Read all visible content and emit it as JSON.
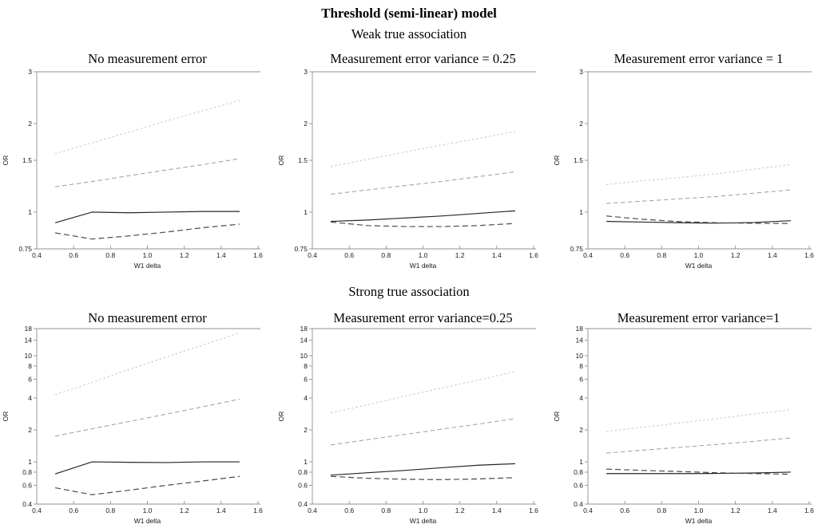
{
  "figure": {
    "title": "Threshold (semi-linear) model",
    "row_subtitles": [
      "Weak true association",
      "Strong true association"
    ],
    "axis_color": "#909090",
    "text_color": "#1a1a1a"
  },
  "chart_data": [
    {
      "type": "line",
      "title": "No measurement error",
      "xlabel": "W1 delta",
      "ylabel": "OR",
      "x": [
        0.5,
        0.7,
        0.9,
        1.1,
        1.3,
        1.5
      ],
      "xlim": [
        0.4,
        1.6
      ],
      "x_ticks": [
        0.4,
        0.6,
        0.8,
        1.0,
        1.2,
        1.4,
        1.6
      ],
      "x_tick_labels": [
        "0.4",
        "0.6",
        "0.8",
        "1.0",
        "1.2",
        "1.4",
        "1.6"
      ],
      "y_scale": "log",
      "ylim": [
        0.75,
        3
      ],
      "y_ticks": [
        0.75,
        1,
        1.5,
        2,
        3
      ],
      "y_tick_labels": [
        "0.75",
        "1",
        "1.5",
        "2",
        "3"
      ],
      "grid": false,
      "legend": "none",
      "series": [
        {
          "name": "upper-dotted-light",
          "style": "dotted",
          "color": "#c7c7c7",
          "dash": "2.5,2.8",
          "width": 1,
          "values": [
            1.58,
            1.72,
            1.87,
            2.04,
            2.21,
            2.4
          ]
        },
        {
          "name": "upper-dashed-gray",
          "style": "dashed",
          "color": "#9c9c9c",
          "dash": "5.5,3.5",
          "width": 1,
          "values": [
            1.22,
            1.27,
            1.33,
            1.39,
            1.45,
            1.52
          ]
        },
        {
          "name": "solid-black",
          "style": "solid",
          "color": "#262626",
          "dash": "",
          "width": 1.2,
          "values": [
            0.92,
            1.0,
            0.995,
            1.0,
            1.005,
            1.005
          ]
        },
        {
          "name": "lower-dashed-dark",
          "style": "dashed",
          "color": "#4a4a4a",
          "dash": "7,4",
          "width": 1.2,
          "values": [
            0.85,
            0.81,
            0.83,
            0.855,
            0.885,
            0.91
          ]
        }
      ]
    },
    {
      "type": "line",
      "title": "Measurement error variance = 0.25",
      "xlabel": "W1 delta",
      "ylabel": "OR",
      "x": [
        0.5,
        0.7,
        0.9,
        1.1,
        1.3,
        1.5
      ],
      "xlim": [
        0.4,
        1.6
      ],
      "x_ticks": [
        0.4,
        0.6,
        0.8,
        1.0,
        1.2,
        1.4,
        1.6
      ],
      "x_tick_labels": [
        "0.4",
        "0.6",
        "0.8",
        "1.0",
        "1.2",
        "1.4",
        "1.6"
      ],
      "y_scale": "log",
      "ylim": [
        0.75,
        3
      ],
      "y_ticks": [
        0.75,
        1,
        1.5,
        2,
        3
      ],
      "y_tick_labels": [
        "0.75",
        "1",
        "1.5",
        "2",
        "3"
      ],
      "grid": false,
      "legend": "none",
      "series": [
        {
          "name": "upper-dotted-light",
          "style": "dotted",
          "color": "#c7c7c7",
          "dash": "2.5,2.8",
          "width": 1,
          "values": [
            1.43,
            1.51,
            1.6,
            1.69,
            1.78,
            1.88
          ]
        },
        {
          "name": "upper-dashed-gray",
          "style": "dashed",
          "color": "#9c9c9c",
          "dash": "5.5,3.5",
          "width": 1,
          "values": [
            1.15,
            1.19,
            1.23,
            1.27,
            1.32,
            1.37
          ]
        },
        {
          "name": "solid-black",
          "style": "solid",
          "color": "#262626",
          "dash": "",
          "width": 1.2,
          "values": [
            0.93,
            0.94,
            0.955,
            0.97,
            0.99,
            1.01
          ]
        },
        {
          "name": "lower-dashed-dark",
          "style": "dashed",
          "color": "#4a4a4a",
          "dash": "7,4",
          "width": 1.2,
          "values": [
            0.925,
            0.9,
            0.893,
            0.893,
            0.9,
            0.915
          ]
        }
      ]
    },
    {
      "type": "line",
      "title": "Measurement error variance = 1",
      "xlabel": "W1 delta",
      "ylabel": "OR",
      "x": [
        0.5,
        0.7,
        0.9,
        1.1,
        1.3,
        1.5
      ],
      "xlim": [
        0.4,
        1.6
      ],
      "x_ticks": [
        0.4,
        0.6,
        0.8,
        1.0,
        1.2,
        1.4,
        1.6
      ],
      "x_tick_labels": [
        "0.4",
        "0.6",
        "0.8",
        "1.0",
        "1.2",
        "1.4",
        "1.6"
      ],
      "y_scale": "log",
      "ylim": [
        0.75,
        3
      ],
      "y_ticks": [
        0.75,
        1,
        1.5,
        2,
        3
      ],
      "y_tick_labels": [
        "0.75",
        "1",
        "1.5",
        "2",
        "3"
      ],
      "grid": false,
      "legend": "none",
      "series": [
        {
          "name": "upper-dotted-light",
          "style": "dotted",
          "color": "#c7c7c7",
          "dash": "2.5,2.8",
          "width": 1,
          "values": [
            1.24,
            1.28,
            1.31,
            1.35,
            1.4,
            1.45
          ]
        },
        {
          "name": "upper-dashed-gray",
          "style": "dashed",
          "color": "#9c9c9c",
          "dash": "5.5,3.5",
          "width": 1,
          "values": [
            1.07,
            1.09,
            1.11,
            1.13,
            1.16,
            1.19
          ]
        },
        {
          "name": "solid-black",
          "style": "solid",
          "color": "#262626",
          "dash": "",
          "width": 1.2,
          "values": [
            0.93,
            0.925,
            0.92,
            0.917,
            0.922,
            0.935
          ]
        },
        {
          "name": "lower-dashed-dark",
          "style": "dashed",
          "color": "#4a4a4a",
          "dash": "7,4",
          "width": 1.2,
          "values": [
            0.97,
            0.945,
            0.928,
            0.92,
            0.916,
            0.915
          ]
        }
      ]
    },
    {
      "type": "line",
      "title": "No measurement error",
      "xlabel": "W1 delta",
      "ylabel": "OR",
      "x": [
        0.5,
        0.7,
        0.9,
        1.1,
        1.3,
        1.5
      ],
      "xlim": [
        0.4,
        1.6
      ],
      "x_ticks": [
        0.4,
        0.6,
        0.8,
        1.0,
        1.2,
        1.4,
        1.6
      ],
      "x_tick_labels": [
        "0.4",
        "0.6",
        "0.8",
        "1.0",
        "1.2",
        "1.4",
        "1.6"
      ],
      "y_scale": "log",
      "ylim": [
        0.4,
        18
      ],
      "y_ticks": [
        0.4,
        0.6,
        0.8,
        1,
        2,
        4,
        6,
        8,
        10,
        14,
        18
      ],
      "y_tick_labels": [
        "0.4",
        "0.6",
        "0.8",
        "1",
        "2",
        "4",
        "6",
        "8",
        "10",
        "14",
        "18"
      ],
      "grid": false,
      "legend": "none",
      "series": [
        {
          "name": "upper-dotted-light",
          "style": "dotted",
          "color": "#c7c7c7",
          "dash": "2.5,2.8",
          "width": 1,
          "values": [
            4.3,
            5.6,
            7.4,
            9.7,
            12.6,
            16.4
          ]
        },
        {
          "name": "upper-dashed-gray",
          "style": "dashed",
          "color": "#9c9c9c",
          "dash": "5.5,3.5",
          "width": 1,
          "values": [
            1.75,
            2.05,
            2.4,
            2.81,
            3.3,
            3.9
          ]
        },
        {
          "name": "solid-black",
          "style": "solid",
          "color": "#262626",
          "dash": "",
          "width": 1.2,
          "values": [
            0.77,
            1.0,
            0.99,
            0.985,
            1.0,
            1.0
          ]
        },
        {
          "name": "lower-dashed-dark",
          "style": "dashed",
          "color": "#4a4a4a",
          "dash": "7,4",
          "width": 1.2,
          "values": [
            0.57,
            0.49,
            0.54,
            0.6,
            0.66,
            0.73
          ]
        }
      ]
    },
    {
      "type": "line",
      "title": "Measurement error variance=0.25",
      "xlabel": "W1 delta",
      "ylabel": "OR",
      "x": [
        0.5,
        0.7,
        0.9,
        1.1,
        1.3,
        1.5
      ],
      "xlim": [
        0.4,
        1.6
      ],
      "x_ticks": [
        0.4,
        0.6,
        0.8,
        1.0,
        1.2,
        1.4,
        1.6
      ],
      "x_tick_labels": [
        "0.4",
        "0.6",
        "0.8",
        "1.0",
        "1.2",
        "1.4",
        "1.6"
      ],
      "y_scale": "log",
      "ylim": [
        0.4,
        18
      ],
      "y_ticks": [
        0.4,
        0.6,
        0.8,
        1,
        2,
        4,
        6,
        8,
        10,
        14,
        18
      ],
      "y_tick_labels": [
        "0.4",
        "0.6",
        "0.8",
        "1",
        "2",
        "4",
        "6",
        "8",
        "10",
        "14",
        "18"
      ],
      "grid": false,
      "legend": "none",
      "series": [
        {
          "name": "upper-dotted-light",
          "style": "dotted",
          "color": "#c7c7c7",
          "dash": "2.5,2.8",
          "width": 1,
          "values": [
            2.9,
            3.45,
            4.15,
            4.95,
            5.9,
            7.1
          ]
        },
        {
          "name": "upper-dashed-gray",
          "style": "dashed",
          "color": "#9c9c9c",
          "dash": "5.5,3.5",
          "width": 1,
          "values": [
            1.44,
            1.62,
            1.81,
            2.03,
            2.27,
            2.55
          ]
        },
        {
          "name": "solid-black",
          "style": "solid",
          "color": "#262626",
          "dash": "",
          "width": 1.2,
          "values": [
            0.75,
            0.79,
            0.83,
            0.88,
            0.93,
            0.96
          ]
        },
        {
          "name": "lower-dashed-dark",
          "style": "dashed",
          "color": "#4a4a4a",
          "dash": "7,4",
          "width": 1.2,
          "values": [
            0.73,
            0.7,
            0.685,
            0.68,
            0.69,
            0.71
          ]
        }
      ]
    },
    {
      "type": "line",
      "title": "Measurement error variance=1",
      "xlabel": "W1 delta",
      "ylabel": "OR",
      "x": [
        0.5,
        0.7,
        0.9,
        1.1,
        1.3,
        1.5
      ],
      "xlim": [
        0.4,
        1.6
      ],
      "x_ticks": [
        0.4,
        0.6,
        0.8,
        1.0,
        1.2,
        1.4,
        1.6
      ],
      "x_tick_labels": [
        "0.4",
        "0.6",
        "0.8",
        "1.0",
        "1.2",
        "1.4",
        "1.6"
      ],
      "y_scale": "log",
      "ylim": [
        0.4,
        18
      ],
      "y_ticks": [
        0.4,
        0.6,
        0.8,
        1,
        2,
        4,
        6,
        8,
        10,
        14,
        18
      ],
      "y_tick_labels": [
        "0.4",
        "0.6",
        "0.8",
        "1",
        "2",
        "4",
        "6",
        "8",
        "10",
        "14",
        "18"
      ],
      "grid": false,
      "legend": "none",
      "series": [
        {
          "name": "upper-dotted-light",
          "style": "dotted",
          "color": "#c7c7c7",
          "dash": "2.5,2.8",
          "width": 1,
          "values": [
            1.93,
            2.12,
            2.33,
            2.56,
            2.82,
            3.1
          ]
        },
        {
          "name": "upper-dashed-gray",
          "style": "dashed",
          "color": "#9c9c9c",
          "dash": "5.5,3.5",
          "width": 1,
          "values": [
            1.21,
            1.29,
            1.37,
            1.46,
            1.56,
            1.68
          ]
        },
        {
          "name": "solid-black",
          "style": "solid",
          "color": "#262626",
          "dash": "",
          "width": 1.2,
          "values": [
            0.775,
            0.775,
            0.775,
            0.778,
            0.785,
            0.8
          ]
        },
        {
          "name": "lower-dashed-dark",
          "style": "dashed",
          "color": "#4a4a4a",
          "dash": "7,4",
          "width": 1.2,
          "values": [
            0.855,
            0.83,
            0.81,
            0.79,
            0.775,
            0.765
          ]
        }
      ]
    }
  ]
}
